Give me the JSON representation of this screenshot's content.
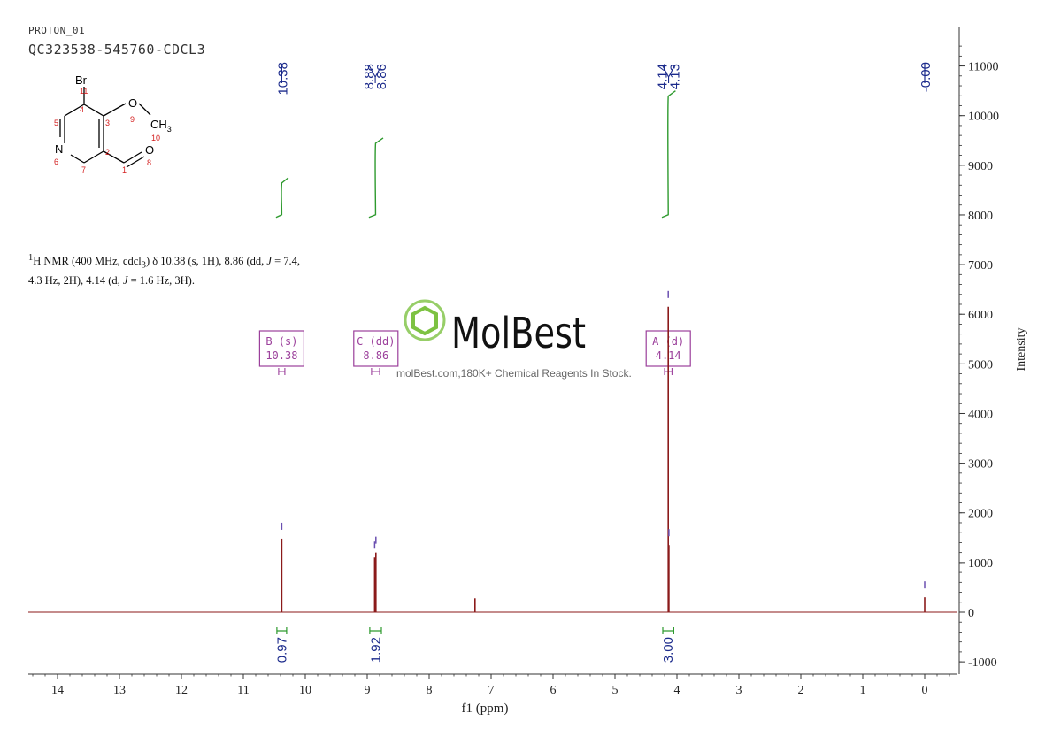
{
  "header": {
    "experiment": "PROTON_01",
    "sample": "QC323538-545760-CDCL3"
  },
  "summary": {
    "sup": "1",
    "part1": "H NMR (400 MHz, cdcl",
    "sub": "3",
    "part2": ") δ 10.38 (s, 1H), 8.86 (dd, ",
    "J1": "J",
    "part3": " = 7.4,",
    "part4": "4.3 Hz, 2H), 4.14 (d, ",
    "J2": "J",
    "part5": " = 1.6 Hz, 3H)."
  },
  "watermark": {
    "brand": "MolBest",
    "tagline": "molBest.com,180K+ Chemical Reagents In Stock.",
    "color": "#7dc242"
  },
  "molecule": {
    "atoms": {
      "br": "Br",
      "o_methoxy": "O",
      "ch3_c": "CH",
      "ch3_sub": "3",
      "n": "N",
      "o_carbonyl": "O"
    },
    "numbers": {
      "n1": "1",
      "n2": "2",
      "n3": "3",
      "n4": "4",
      "n5": "5",
      "n6": "6",
      "n7": "7",
      "n8": "8",
      "n9": "9",
      "n10": "10",
      "n11": "11"
    }
  },
  "colors": {
    "spectrum": "#8b1a1a",
    "integral": "#2e9a2e",
    "peak_label": "#1c2b8c",
    "multiplet": "#9b3f9b",
    "axis": "#333333",
    "atom_number": "#d42020"
  },
  "chart_data": {
    "type": "line",
    "title": "",
    "xlabel": "f1 (ppm)",
    "ylabel": "Intensity",
    "xlim": [
      14.5,
      -0.5
    ],
    "ylim": [
      -1200,
      11800
    ],
    "x_reversed": true,
    "x_ticks": [
      "14",
      "13",
      "12",
      "11",
      "10",
      "9",
      "8",
      "7",
      "6",
      "5",
      "4",
      "3",
      "2",
      "1",
      "0"
    ],
    "y_ticks": [
      "11000",
      "10000",
      "9000",
      "8000",
      "7000",
      "6000",
      "5000",
      "4000",
      "3000",
      "2000",
      "1000",
      "0",
      "-1000"
    ],
    "y_axis_position": "right",
    "peaks": [
      {
        "ppm": 10.38,
        "height": 1480
      },
      {
        "ppm": 8.88,
        "height": 1100
      },
      {
        "ppm": 8.86,
        "height": 1200
      },
      {
        "ppm": 7.26,
        "height": 280
      },
      {
        "ppm": 4.14,
        "height": 6150
      },
      {
        "ppm": 4.13,
        "height": 1350
      },
      {
        "ppm": 0.0,
        "height": 300
      }
    ],
    "peak_labels": [
      {
        "groups": [
          [
            "10.38"
          ]
        ],
        "ppm": 10.38
      },
      {
        "groups": [
          [
            "8.88",
            "8.86"
          ]
        ],
        "ppm": 8.87
      },
      {
        "groups": [
          [
            "4.14",
            "4.13"
          ]
        ],
        "ppm": 4.135
      },
      {
        "groups": [
          [
            "-0.00"
          ]
        ],
        "ppm": 0.0
      }
    ],
    "integrals": [
      {
        "from": 10.43,
        "to": 10.33,
        "value": "0.97",
        "y_start": 7950,
        "y_end": 8750
      },
      {
        "from": 8.93,
        "to": 8.8,
        "value": "1.92",
        "y_start": 7950,
        "y_end": 9550
      },
      {
        "from": 4.2,
        "to": 4.08,
        "value": "3.00",
        "y_start": 7950,
        "y_end": 10500
      }
    ],
    "multiplets": [
      {
        "letter": "B",
        "type": "(s)",
        "shift": "10.38",
        "ppm": 10.38,
        "from": 10.43,
        "to": 10.33
      },
      {
        "letter": "C",
        "type": "(dd)",
        "shift": "8.86",
        "ppm": 8.86,
        "from": 8.93,
        "to": 8.8
      },
      {
        "letter": "A",
        "type": "(d)",
        "shift": "4.14",
        "ppm": 4.14,
        "from": 4.2,
        "to": 4.08
      }
    ]
  }
}
